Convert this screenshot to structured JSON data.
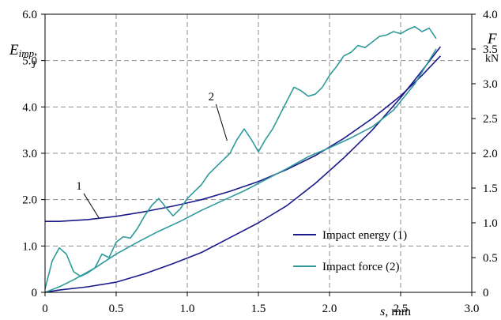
{
  "chart_data": {
    "type": "line",
    "x_axis": {
      "label_var": "s",
      "label_unit": ", mm",
      "lim": [
        0,
        3.0
      ],
      "ticks": [
        0,
        0.5,
        1.0,
        1.5,
        2.0,
        2.5,
        3.0
      ],
      "tick_labels": [
        "0",
        "0.5",
        "1.0",
        "1.5",
        "2.0",
        "2.5",
        "3.0"
      ]
    },
    "y_left": {
      "label_var": "E",
      "label_sub": "imp",
      "label_comma": ",",
      "label_unit": "J",
      "lim": [
        0,
        6.0
      ],
      "ticks": [
        0,
        1.0,
        2.0,
        3.0,
        4.0,
        5.0,
        6.0
      ],
      "tick_labels": [
        "0",
        "1.0",
        "2.0",
        "3.0",
        "4.0",
        "5.0",
        "6.0"
      ]
    },
    "y_right": {
      "label_var": "F",
      "label_unit": "kN",
      "lim": [
        0,
        4.0
      ],
      "ticks": [
        0,
        0.5,
        1.0,
        1.5,
        2.0,
        2.5,
        3.0,
        3.5,
        4.0
      ],
      "tick_labels": [
        "0",
        "0.5",
        "1.0",
        "1.5",
        "2.0",
        "2.5",
        "3.0",
        "3.5",
        "4.0"
      ]
    },
    "grid": "dashed",
    "legend_position": "bottom-right",
    "series": [
      {
        "name": "Impact energy (1)",
        "axis": "left",
        "color": "#1a1a8c",
        "annotation": "1",
        "x": [
          0,
          0.1,
          0.3,
          0.5,
          0.7,
          0.9,
          1.1,
          1.3,
          1.5,
          1.7,
          1.9,
          2.1,
          2.3,
          2.5,
          2.65,
          2.78
        ],
        "y": [
          1.53,
          1.53,
          1.57,
          1.64,
          1.74,
          1.86,
          2.0,
          2.18,
          2.39,
          2.65,
          2.95,
          3.32,
          3.75,
          4.24,
          4.68,
          5.1
        ]
      },
      {
        "name": "",
        "axis": "left",
        "color": "#1a1a8c",
        "x": [
          0,
          0.1,
          0.3,
          0.5,
          0.7,
          0.9,
          1.1,
          1.3,
          1.5,
          1.7,
          1.9,
          2.1,
          2.3,
          2.5,
          2.65,
          2.78
        ],
        "y": [
          0,
          0.05,
          0.12,
          0.22,
          0.4,
          0.62,
          0.86,
          1.18,
          1.5,
          1.87,
          2.35,
          2.9,
          3.5,
          4.2,
          4.78,
          5.3
        ]
      },
      {
        "name": "Impact force (2)",
        "axis": "right",
        "color": "#2e9a9a",
        "annotation": "2",
        "x": [
          0,
          0.05,
          0.1,
          0.15,
          0.2,
          0.25,
          0.3,
          0.35,
          0.4,
          0.45,
          0.5,
          0.55,
          0.6,
          0.65,
          0.7,
          0.75,
          0.8,
          0.85,
          0.9,
          0.95,
          1.0,
          1.05,
          1.1,
          1.15,
          1.2,
          1.25,
          1.3,
          1.35,
          1.4,
          1.45,
          1.5,
          1.55,
          1.6,
          1.65,
          1.7,
          1.75,
          1.8,
          1.85,
          1.9,
          1.95,
          2.0,
          2.05,
          2.1,
          2.15,
          2.2,
          2.25,
          2.3,
          2.35,
          2.4,
          2.45,
          2.5,
          2.55,
          2.6,
          2.65,
          2.7,
          2.75
        ],
        "y": [
          0.05,
          0.45,
          0.64,
          0.55,
          0.3,
          0.23,
          0.28,
          0.35,
          0.55,
          0.5,
          0.72,
          0.8,
          0.78,
          0.92,
          1.1,
          1.25,
          1.35,
          1.22,
          1.1,
          1.2,
          1.35,
          1.45,
          1.55,
          1.7,
          1.8,
          1.9,
          2.0,
          2.2,
          2.35,
          2.2,
          2.02,
          2.2,
          2.35,
          2.55,
          2.75,
          2.95,
          2.9,
          2.82,
          2.85,
          2.95,
          3.12,
          3.25,
          3.4,
          3.45,
          3.55,
          3.52,
          3.6,
          3.68,
          3.7,
          3.75,
          3.72,
          3.78,
          3.82,
          3.75,
          3.8,
          3.65
        ]
      },
      {
        "name": "",
        "axis": "right",
        "color": "#2e9a9a",
        "x": [
          2.75,
          2.6,
          2.45,
          2.3,
          2.15,
          2.0,
          1.85,
          1.7,
          1.55,
          1.4,
          1.25,
          1.1,
          0.95,
          0.8,
          0.65,
          0.5,
          0.35,
          0.2,
          0.1,
          0
        ],
        "y": [
          3.5,
          3.0,
          2.62,
          2.38,
          2.22,
          2.08,
          1.95,
          1.78,
          1.62,
          1.46,
          1.32,
          1.18,
          1.02,
          0.88,
          0.72,
          0.55,
          0.35,
          0.18,
          0.08,
          0.0
        ]
      }
    ],
    "annotations": [
      {
        "text": "1",
        "x": 0.38,
        "y": 1.6,
        "label_x": 0.25,
        "label_y": 2.2,
        "axis": "left"
      },
      {
        "text": "2",
        "x": 1.28,
        "y": 2.18,
        "label_x": 1.18,
        "label_y": 2.75,
        "axis": "right"
      }
    ]
  }
}
